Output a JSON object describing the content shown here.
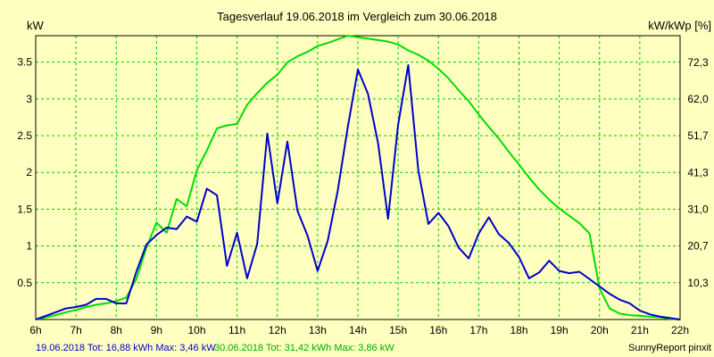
{
  "chart_data": {
    "type": "line",
    "title": "Tagesverlauf 19.06.2018 im Vergleich zum 30.06.2018",
    "ylabel_left": "kW",
    "ylabel_right": "kW/kWp [%]",
    "x_range": [
      6,
      22
    ],
    "y_range": [
      0,
      3.86
    ],
    "grid": true,
    "x_ticks": [
      {
        "value": 6,
        "label": "6h"
      },
      {
        "value": 7,
        "label": "7h"
      },
      {
        "value": 8,
        "label": "8h"
      },
      {
        "value": 9,
        "label": "9h"
      },
      {
        "value": 10,
        "label": "10h"
      },
      {
        "value": 11,
        "label": "11h"
      },
      {
        "value": 12,
        "label": "12h"
      },
      {
        "value": 13,
        "label": "13h"
      },
      {
        "value": 14,
        "label": "14h"
      },
      {
        "value": 15,
        "label": "15h"
      },
      {
        "value": 16,
        "label": "16h"
      },
      {
        "value": 17,
        "label": "17h"
      },
      {
        "value": 18,
        "label": "18h"
      },
      {
        "value": 19,
        "label": "19h"
      },
      {
        "value": 20,
        "label": "20h"
      },
      {
        "value": 21,
        "label": "21h"
      },
      {
        "value": 22,
        "label": "22h"
      }
    ],
    "y_ticks_left": [
      {
        "value": 0.5,
        "label": "0.5"
      },
      {
        "value": 1,
        "label": "1"
      },
      {
        "value": 1.5,
        "label": "1.5"
      },
      {
        "value": 2,
        "label": "2"
      },
      {
        "value": 2.5,
        "label": "2.5"
      },
      {
        "value": 3,
        "label": "3"
      },
      {
        "value": 3.5,
        "label": "3.5"
      }
    ],
    "y_ticks_right": [
      {
        "value": 10.3,
        "label": "10,3"
      },
      {
        "value": 20.7,
        "label": "20,7"
      },
      {
        "value": 31.0,
        "label": "31,0"
      },
      {
        "value": 41.3,
        "label": "41,3"
      },
      {
        "value": 51.7,
        "label": "51,7"
      },
      {
        "value": 62.0,
        "label": "62,0"
      },
      {
        "value": 72.3,
        "label": "72,3"
      }
    ],
    "right_axis_max": 79.8,
    "series": [
      {
        "name": "19.06.2018",
        "color": "#0000CC",
        "x": [
          6.0,
          6.25,
          6.5,
          6.75,
          7.0,
          7.25,
          7.5,
          7.75,
          8.0,
          8.25,
          8.5,
          8.75,
          9.0,
          9.25,
          9.5,
          9.75,
          10.0,
          10.25,
          10.5,
          10.75,
          11.0,
          11.25,
          11.5,
          11.75,
          12.0,
          12.25,
          12.5,
          12.75,
          13.0,
          13.25,
          13.5,
          13.75,
          14.0,
          14.25,
          14.5,
          14.75,
          15.0,
          15.25,
          15.5,
          15.75,
          16.0,
          16.25,
          16.5,
          16.75,
          17.0,
          17.25,
          17.5,
          17.75,
          18.0,
          18.25,
          18.5,
          18.75,
          19.0,
          19.25,
          19.5,
          19.75,
          20.0,
          20.25,
          20.5,
          20.75,
          21.0,
          21.25,
          21.5,
          21.75,
          22.0
        ],
        "y": [
          0.0,
          0.05,
          0.1,
          0.15,
          0.17,
          0.2,
          0.28,
          0.28,
          0.22,
          0.22,
          0.65,
          1.02,
          1.15,
          1.25,
          1.23,
          1.4,
          1.33,
          1.78,
          1.69,
          0.73,
          1.18,
          0.56,
          1.03,
          2.53,
          1.58,
          2.42,
          1.48,
          1.14,
          0.66,
          1.07,
          1.75,
          2.62,
          3.4,
          3.07,
          2.4,
          1.37,
          2.65,
          3.46,
          2.03,
          1.3,
          1.45,
          1.27,
          0.98,
          0.83,
          1.17,
          1.39,
          1.16,
          1.04,
          0.85,
          0.56,
          0.64,
          0.8,
          0.66,
          0.63,
          0.65,
          0.55,
          0.45,
          0.35,
          0.27,
          0.22,
          0.12,
          0.07,
          0.04,
          0.02,
          0.0
        ]
      },
      {
        "name": "30.06.2018",
        "color": "#00DD00",
        "x": [
          6.0,
          6.25,
          6.5,
          6.75,
          7.0,
          7.25,
          7.5,
          7.75,
          8.0,
          8.25,
          8.5,
          8.75,
          9.0,
          9.25,
          9.5,
          9.75,
          10.0,
          10.25,
          10.5,
          10.75,
          11.0,
          11.25,
          11.5,
          11.75,
          12.0,
          12.25,
          12.5,
          12.75,
          13.0,
          13.25,
          13.5,
          13.75,
          14.0,
          14.25,
          14.5,
          14.75,
          15.0,
          15.25,
          15.5,
          15.75,
          16.0,
          16.25,
          16.5,
          16.75,
          17.0,
          17.25,
          17.5,
          17.75,
          18.0,
          18.25,
          18.5,
          18.75,
          19.0,
          19.25,
          19.5,
          19.75,
          20.0,
          20.25,
          20.5,
          20.75,
          21.0,
          21.25,
          21.5,
          21.75,
          22.0
        ],
        "y": [
          0.0,
          0.03,
          0.06,
          0.1,
          0.13,
          0.17,
          0.2,
          0.22,
          0.25,
          0.3,
          0.55,
          0.98,
          1.32,
          1.18,
          1.64,
          1.54,
          2.03,
          2.3,
          2.6,
          2.64,
          2.66,
          2.92,
          3.08,
          3.22,
          3.33,
          3.5,
          3.58,
          3.64,
          3.72,
          3.76,
          3.81,
          3.86,
          3.84,
          3.82,
          3.8,
          3.78,
          3.74,
          3.66,
          3.6,
          3.52,
          3.41,
          3.28,
          3.12,
          2.97,
          2.79,
          2.62,
          2.46,
          2.28,
          2.11,
          1.93,
          1.77,
          1.63,
          1.51,
          1.41,
          1.31,
          1.17,
          0.42,
          0.15,
          0.08,
          0.06,
          0.05,
          0.04,
          0.03,
          0.01,
          0.0
        ]
      }
    ],
    "footer": {
      "series1_label": "19.06.2018 Tot: 16,88 kWh Max: 3,46 kW",
      "series2_label": "30.06.2018 Tot: 31,42 kWh Max: 3,86 kW",
      "brand": "SunnyReport pinxit"
    }
  }
}
